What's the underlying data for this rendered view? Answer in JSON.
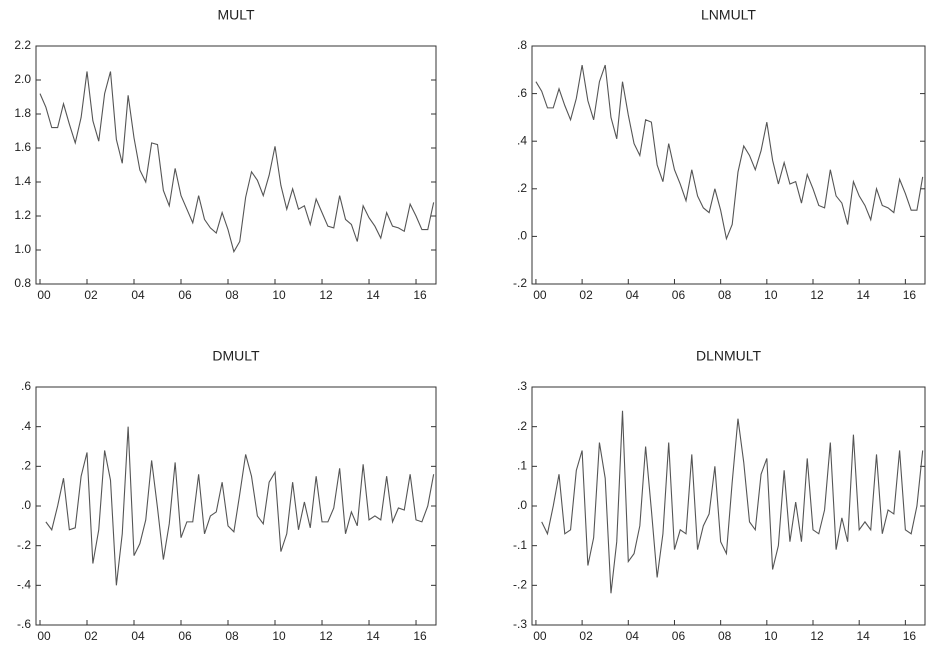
{
  "chart_data": [
    {
      "type": "line",
      "title": "MULT",
      "color": "#555555",
      "x": [
        2000,
        2000.25,
        2000.5,
        2000.75,
        2001,
        2001.25,
        2001.5,
        2001.75,
        2002,
        2002.25,
        2002.5,
        2002.75,
        2003,
        2003.25,
        2003.5,
        2003.75,
        2004,
        2004.25,
        2004.5,
        2004.75,
        2005,
        2005.25,
        2005.5,
        2005.75,
        2006,
        2006.25,
        2006.5,
        2006.75,
        2007,
        2007.25,
        2007.5,
        2007.75,
        2008,
        2008.25,
        2008.5,
        2008.75,
        2009,
        2009.25,
        2009.5,
        2009.75,
        2010,
        2010.25,
        2010.5,
        2010.75,
        2011,
        2011.25,
        2011.5,
        2011.75,
        2012,
        2012.25,
        2012.5,
        2012.75,
        2013,
        2013.25,
        2013.5,
        2013.75,
        2014,
        2014.25,
        2014.5,
        2014.75,
        2015,
        2015.25,
        2015.5,
        2015.75,
        2016,
        2016.25,
        2016.5,
        2016.75
      ],
      "values": [
        1.92,
        1.84,
        1.72,
        1.72,
        1.86,
        1.74,
        1.63,
        1.78,
        2.05,
        1.76,
        1.64,
        1.92,
        2.05,
        1.65,
        1.51,
        1.91,
        1.66,
        1.47,
        1.4,
        1.63,
        1.62,
        1.35,
        1.26,
        1.48,
        1.32,
        1.24,
        1.16,
        1.32,
        1.18,
        1.13,
        1.1,
        1.22,
        1.12,
        0.99,
        1.05,
        1.31,
        1.46,
        1.41,
        1.32,
        1.44,
        1.61,
        1.38,
        1.24,
        1.36,
        1.24,
        1.26,
        1.15,
        1.3,
        1.22,
        1.14,
        1.13,
        1.32,
        1.18,
        1.15,
        1.05,
        1.26,
        1.19,
        1.14,
        1.07,
        1.22,
        1.14,
        1.13,
        1.11,
        1.27,
        1.2,
        1.12,
        1.12,
        1.28
      ],
      "xlim": [
        1999.83,
        2016.85
      ],
      "xticks": [
        {
          "value": 2000,
          "label": "00"
        },
        {
          "value": 2002,
          "label": "02"
        },
        {
          "value": 2004,
          "label": "04"
        },
        {
          "value": 2006,
          "label": "06"
        },
        {
          "value": 2008,
          "label": "08"
        },
        {
          "value": 2010,
          "label": "10"
        },
        {
          "value": 2012,
          "label": "12"
        },
        {
          "value": 2014,
          "label": "14"
        },
        {
          "value": 2016,
          "label": "16"
        }
      ],
      "ylim": [
        0.8,
        2.2
      ],
      "yticks": [
        0.8,
        {
          "value": 1.0,
          "label": "1.0"
        },
        1.2,
        1.4,
        1.6,
        1.8,
        {
          "value": 2.0,
          "label": "2.0"
        },
        2.2
      ]
    },
    {
      "type": "line",
      "title": "LNMULT",
      "color": "#555555",
      "x": [
        2000,
        2000.25,
        2000.5,
        2000.75,
        2001,
        2001.25,
        2001.5,
        2001.75,
        2002,
        2002.25,
        2002.5,
        2002.75,
        2003,
        2003.25,
        2003.5,
        2003.75,
        2004,
        2004.25,
        2004.5,
        2004.75,
        2005,
        2005.25,
        2005.5,
        2005.75,
        2006,
        2006.25,
        2006.5,
        2006.75,
        2007,
        2007.25,
        2007.5,
        2007.75,
        2008,
        2008.25,
        2008.5,
        2008.75,
        2009,
        2009.25,
        2009.5,
        2009.75,
        2010,
        2010.25,
        2010.5,
        2010.75,
        2011,
        2011.25,
        2011.5,
        2011.75,
        2012,
        2012.25,
        2012.5,
        2012.75,
        2013,
        2013.25,
        2013.5,
        2013.75,
        2014,
        2014.25,
        2014.5,
        2014.75,
        2015,
        2015.25,
        2015.5,
        2015.75,
        2016,
        2016.25,
        2016.5,
        2016.75
      ],
      "values": [
        0.65,
        0.61,
        0.54,
        0.54,
        0.62,
        0.55,
        0.49,
        0.58,
        0.72,
        0.57,
        0.49,
        0.65,
        0.72,
        0.5,
        0.41,
        0.65,
        0.51,
        0.39,
        0.34,
        0.49,
        0.48,
        0.3,
        0.23,
        0.39,
        0.28,
        0.22,
        0.15,
        0.28,
        0.17,
        0.12,
        0.1,
        0.2,
        0.11,
        -0.01,
        0.05,
        0.27,
        0.38,
        0.34,
        0.28,
        0.36,
        0.48,
        0.32,
        0.22,
        0.31,
        0.22,
        0.23,
        0.14,
        0.26,
        0.2,
        0.13,
        0.12,
        0.28,
        0.17,
        0.14,
        0.05,
        0.23,
        0.17,
        0.13,
        0.07,
        0.2,
        0.13,
        0.12,
        0.1,
        0.24,
        0.18,
        0.11,
        0.11,
        0.25
      ],
      "xlim": [
        1999.83,
        2016.85
      ],
      "xticks": [
        {
          "value": 2000,
          "label": "00"
        },
        {
          "value": 2002,
          "label": "02"
        },
        {
          "value": 2004,
          "label": "04"
        },
        {
          "value": 2006,
          "label": "06"
        },
        {
          "value": 2008,
          "label": "08"
        },
        {
          "value": 2010,
          "label": "10"
        },
        {
          "value": 2012,
          "label": "12"
        },
        {
          "value": 2014,
          "label": "14"
        },
        {
          "value": 2016,
          "label": "16"
        }
      ],
      "ylim": [
        -0.2,
        0.8
      ],
      "yticks": [
        {
          "value": -0.2,
          "label": "-.2"
        },
        {
          "value": 0,
          "label": ".0"
        },
        {
          "value": 0.2,
          "label": ".2"
        },
        {
          "value": 0.4,
          "label": ".4"
        },
        {
          "value": 0.6,
          "label": ".6"
        },
        {
          "value": 0.8,
          "label": ".8"
        }
      ]
    },
    {
      "type": "line",
      "title": "DMULT",
      "color": "#555555",
      "x": [
        2000.25,
        2000.5,
        2000.75,
        2001,
        2001.25,
        2001.5,
        2001.75,
        2002,
        2002.25,
        2002.5,
        2002.75,
        2003,
        2003.25,
        2003.5,
        2003.75,
        2004,
        2004.25,
        2004.5,
        2004.75,
        2005,
        2005.25,
        2005.5,
        2005.75,
        2006,
        2006.25,
        2006.5,
        2006.75,
        2007,
        2007.25,
        2007.5,
        2007.75,
        2008,
        2008.25,
        2008.5,
        2008.75,
        2009,
        2009.25,
        2009.5,
        2009.75,
        2010,
        2010.25,
        2010.5,
        2010.75,
        2011,
        2011.25,
        2011.5,
        2011.75,
        2012,
        2012.25,
        2012.5,
        2012.75,
        2013,
        2013.25,
        2013.5,
        2013.75,
        2014,
        2014.25,
        2014.5,
        2014.75,
        2015,
        2015.25,
        2015.5,
        2015.75,
        2016,
        2016.25,
        2016.5,
        2016.75
      ],
      "values": [
        -0.08,
        -0.12,
        0,
        0.14,
        -0.12,
        -0.11,
        0.15,
        0.27,
        -0.29,
        -0.12,
        0.28,
        0.13,
        -0.4,
        -0.14,
        0.4,
        -0.25,
        -0.19,
        -0.07,
        0.23,
        -0.01,
        -0.27,
        -0.09,
        0.22,
        -0.16,
        -0.08,
        -0.08,
        0.16,
        -0.14,
        -0.05,
        -0.03,
        0.12,
        -0.1,
        -0.13,
        0.06,
        0.26,
        0.15,
        -0.05,
        -0.09,
        0.12,
        0.17,
        -0.23,
        -0.14,
        0.12,
        -0.12,
        0.02,
        -0.11,
        0.15,
        -0.08,
        -0.08,
        -0.01,
        0.19,
        -0.14,
        -0.03,
        -0.1,
        0.21,
        -0.07,
        -0.05,
        -0.07,
        0.15,
        -0.08,
        -0.01,
        -0.02,
        0.16,
        -0.07,
        -0.08,
        0,
        0.16
      ],
      "xlim": [
        1999.83,
        2016.85
      ],
      "xticks": [
        {
          "value": 2000,
          "label": "00"
        },
        {
          "value": 2002,
          "label": "02"
        },
        {
          "value": 2004,
          "label": "04"
        },
        {
          "value": 2006,
          "label": "06"
        },
        {
          "value": 2008,
          "label": "08"
        },
        {
          "value": 2010,
          "label": "10"
        },
        {
          "value": 2012,
          "label": "12"
        },
        {
          "value": 2014,
          "label": "14"
        },
        {
          "value": 2016,
          "label": "16"
        }
      ],
      "ylim": [
        -0.6,
        0.6
      ],
      "yticks": [
        {
          "value": -0.6,
          "label": "-.6"
        },
        {
          "value": -0.4,
          "label": "-.4"
        },
        {
          "value": -0.2,
          "label": "-.2"
        },
        {
          "value": 0,
          "label": ".0"
        },
        {
          "value": 0.2,
          "label": ".2"
        },
        {
          "value": 0.4,
          "label": ".4"
        },
        {
          "value": 0.6,
          "label": ".6"
        }
      ]
    },
    {
      "type": "line",
      "title": "DLNMULT",
      "color": "#555555",
      "x": [
        2000.25,
        2000.5,
        2000.75,
        2001,
        2001.25,
        2001.5,
        2001.75,
        2002,
        2002.25,
        2002.5,
        2002.75,
        2003,
        2003.25,
        2003.5,
        2003.75,
        2004,
        2004.25,
        2004.5,
        2004.75,
        2005,
        2005.25,
        2005.5,
        2005.75,
        2006,
        2006.25,
        2006.5,
        2006.75,
        2007,
        2007.25,
        2007.5,
        2007.75,
        2008,
        2008.25,
        2008.5,
        2008.75,
        2009,
        2009.25,
        2009.5,
        2009.75,
        2010,
        2010.25,
        2010.5,
        2010.75,
        2011,
        2011.25,
        2011.5,
        2011.75,
        2012,
        2012.25,
        2012.5,
        2012.75,
        2013,
        2013.25,
        2013.5,
        2013.75,
        2014,
        2014.25,
        2014.5,
        2014.75,
        2015,
        2015.25,
        2015.5,
        2015.75,
        2016,
        2016.25,
        2016.5,
        2016.75
      ],
      "values": [
        -0.04,
        -0.07,
        0,
        0.08,
        -0.07,
        -0.06,
        0.09,
        0.14,
        -0.15,
        -0.08,
        0.16,
        0.07,
        -0.22,
        -0.09,
        0.24,
        -0.14,
        -0.12,
        -0.05,
        0.15,
        -0.01,
        -0.18,
        -0.07,
        0.16,
        -0.11,
        -0.06,
        -0.07,
        0.13,
        -0.11,
        -0.05,
        -0.02,
        0.1,
        -0.09,
        -0.12,
        0.06,
        0.22,
        0.11,
        -0.04,
        -0.06,
        0.08,
        0.12,
        -0.16,
        -0.1,
        0.09,
        -0.09,
        0.01,
        -0.09,
        0.12,
        -0.06,
        -0.07,
        -0.01,
        0.16,
        -0.11,
        -0.03,
        -0.09,
        0.18,
        -0.06,
        -0.04,
        -0.06,
        0.13,
        -0.07,
        -0.01,
        -0.02,
        0.14,
        -0.06,
        -0.07,
        0,
        0.14
      ],
      "xlim": [
        1999.83,
        2016.85
      ],
      "xticks": [
        {
          "value": 2000,
          "label": "00"
        },
        {
          "value": 2002,
          "label": "02"
        },
        {
          "value": 2004,
          "label": "04"
        },
        {
          "value": 2006,
          "label": "06"
        },
        {
          "value": 2008,
          "label": "08"
        },
        {
          "value": 2010,
          "label": "10"
        },
        {
          "value": 2012,
          "label": "12"
        },
        {
          "value": 2014,
          "label": "14"
        },
        {
          "value": 2016,
          "label": "16"
        }
      ],
      "ylim": [
        -0.3,
        0.3
      ],
      "yticks": [
        {
          "value": -0.3,
          "label": "-.3"
        },
        {
          "value": -0.2,
          "label": "-.2"
        },
        {
          "value": -0.1,
          "label": "-.1"
        },
        {
          "value": 0,
          "label": ".0"
        },
        {
          "value": 0.1,
          "label": ".1"
        },
        {
          "value": 0.2,
          "label": ".2"
        },
        {
          "value": 0.3,
          "label": ".3"
        }
      ]
    }
  ]
}
